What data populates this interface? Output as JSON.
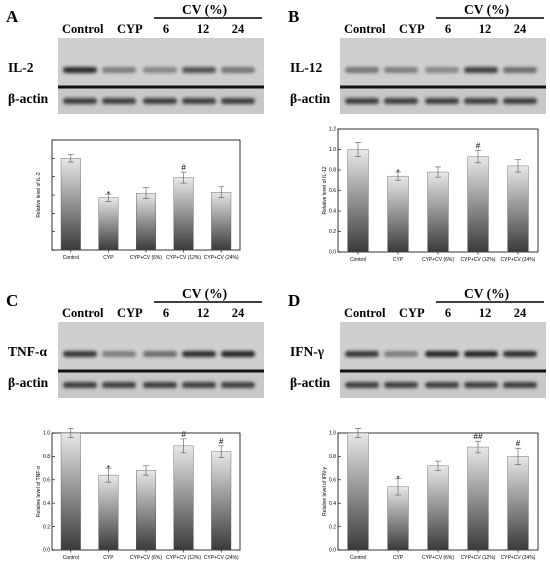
{
  "figure": {
    "panels": [
      {
        "letter": "A",
        "header": {
          "lanes": [
            "Control",
            "CYP"
          ],
          "group": "CV  (%)",
          "doses": [
            "6",
            "12",
            "24"
          ]
        },
        "blot": {
          "target": "IL-2",
          "loading": "β-actin"
        },
        "band_intensity": [
          0.92,
          0.45,
          0.4,
          0.7,
          0.5
        ]
      },
      {
        "letter": "B",
        "header": {
          "lanes": [
            "Control",
            "CYP"
          ],
          "group": "CV  (%)",
          "doses": [
            "6",
            "12",
            "24"
          ]
        },
        "blot": {
          "target": "IL-12",
          "loading": "β-actin"
        },
        "band_intensity": [
          0.5,
          0.45,
          0.4,
          0.8,
          0.55
        ]
      },
      {
        "letter": "C",
        "header": {
          "lanes": [
            "Control",
            "CYP"
          ],
          "group": "CV  (%)",
          "doses": [
            "6",
            "12",
            "24"
          ]
        },
        "blot": {
          "target": "TNF-α",
          "loading": "β-actin"
        },
        "band_intensity": [
          0.85,
          0.45,
          0.55,
          0.9,
          0.95
        ]
      },
      {
        "letter": "D",
        "header": {
          "lanes": [
            "Control",
            "CYP"
          ],
          "group": "CV  (%)",
          "doses": [
            "6",
            "12",
            "24"
          ]
        },
        "blot": {
          "target": "IFN-γ",
          "loading": "β-actin"
        },
        "band_intensity": [
          0.85,
          0.45,
          0.95,
          0.95,
          0.9
        ]
      }
    ],
    "colors": {
      "bar_top": "#e8e8e8",
      "bar_bottom": "#3a3a3a",
      "blot_bg": "#cfcfcf",
      "band": "#1a1a1a"
    }
  },
  "chart_data": [
    {
      "type": "bar",
      "categories": [
        "Control",
        "CYP",
        "CYP+CV (6%)",
        "CYP+CV (12%)",
        "CYP+CV (24%)"
      ],
      "values": [
        1.0,
        0.57,
        0.62,
        0.79,
        0.63
      ],
      "errors": [
        0.04,
        0.04,
        0.06,
        0.06,
        0.06
      ],
      "annotations": [
        "",
        "*",
        "",
        "#",
        ""
      ],
      "ylabel": "Relative level of IL-2",
      "ylim": [
        0,
        1.2
      ],
      "yticks": [
        "",
        "",
        "",
        "",
        "",
        "",
        ""
      ],
      "grid": false
    },
    {
      "type": "bar",
      "categories": [
        "Control",
        "CYP",
        "CYP+CV (6%)",
        "CYP+CV (12%)",
        "CYP+CV (24%)"
      ],
      "values": [
        1.0,
        0.74,
        0.78,
        0.93,
        0.84
      ],
      "errors": [
        0.07,
        0.04,
        0.05,
        0.06,
        0.06
      ],
      "annotations": [
        "",
        "*",
        "",
        "#",
        ""
      ],
      "ylabel": "Relative level of IL-12",
      "ylim": [
        0,
        1.2
      ],
      "yticks": [
        "0.0",
        "0.2",
        "0.4",
        "0.6",
        "0.8",
        "1.0",
        "1.2"
      ],
      "grid": false
    },
    {
      "type": "bar",
      "categories": [
        "Control",
        "CYP",
        "CYP+CV (6%)",
        "CYP+CV (12%)",
        "CYP+CV (24%)"
      ],
      "values": [
        1.0,
        0.64,
        0.68,
        0.89,
        0.84
      ],
      "errors": [
        0.04,
        0.06,
        0.04,
        0.06,
        0.05
      ],
      "annotations": [
        "",
        "*",
        "",
        "#",
        "#"
      ],
      "ylabel": "Relative level of TNF-α",
      "ylim": [
        0,
        1.0
      ],
      "yticks": [
        "0.0",
        "0.2",
        "0.4",
        "0.6",
        "0.8",
        "1.0"
      ],
      "grid": false
    },
    {
      "type": "bar",
      "categories": [
        "Control",
        "CYP",
        "CYP+CV (6%)",
        "CYP+CV (12%)",
        "CYP+CV (24%)"
      ],
      "values": [
        1.0,
        0.54,
        0.72,
        0.88,
        0.8
      ],
      "errors": [
        0.04,
        0.07,
        0.04,
        0.05,
        0.07
      ],
      "annotations": [
        "",
        "*",
        "",
        "##",
        "#"
      ],
      "ylabel": "Relative level of IFN-γ",
      "ylim": [
        0,
        1.0
      ],
      "yticks": [
        "0.0",
        "0.2",
        "0.4",
        "0.6",
        "0.8",
        "1.0"
      ],
      "grid": false
    }
  ]
}
